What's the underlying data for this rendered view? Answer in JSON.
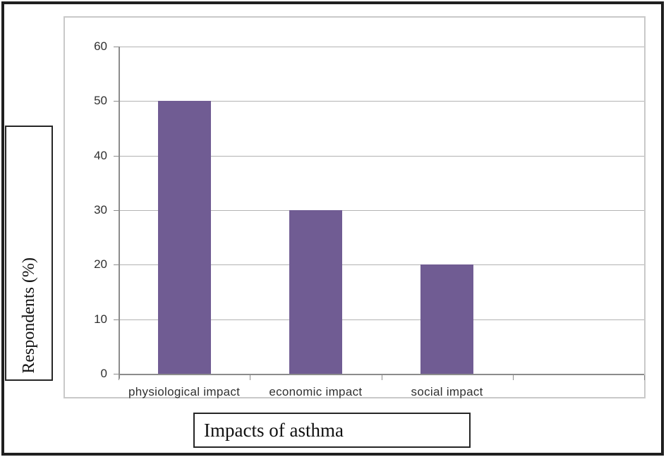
{
  "chart_data": {
    "type": "bar",
    "categories": [
      "physiological impact",
      "economic impact",
      "social impact"
    ],
    "values": [
      50,
      30,
      20
    ],
    "xlabel": "Impacts of asthma",
    "ylabel": "Respondents (%)",
    "ylim": [
      0,
      60
    ],
    "yticks": [
      0,
      10,
      20,
      30,
      40,
      50,
      60
    ],
    "grid": true,
    "legend": false,
    "num_category_slots": 4,
    "bar_color": "#705C93"
  },
  "colors": {
    "bar": "#705C93",
    "gridline": "#b3b3b3",
    "axis": "#8c8c8c",
    "frame_border": "#c9c9c9",
    "outer_border": "#1f1f1f",
    "tick_label_text": "#303030",
    "title_text": "#111111"
  }
}
